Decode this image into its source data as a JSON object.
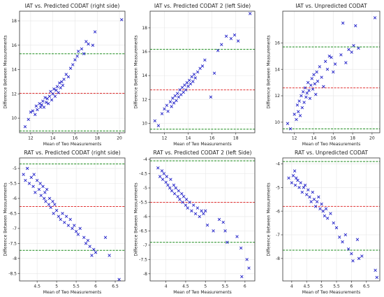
{
  "colors": {
    "points": "#2020c8",
    "mean_line": "#e03030",
    "loa_line": "#1a8a1a",
    "frame": "#333333",
    "grid": "#e6e6e6"
  },
  "chart_data": [
    {
      "type": "scatter",
      "title": "IAT vs. Predicted CODAT (right side)",
      "xlabel": "Mean of Two Measurements",
      "ylabel": "Difference Between Measurements",
      "xlim": [
        11.0,
        20.5
      ],
      "ylim": [
        8.8,
        18.8
      ],
      "xticks": [
        12,
        14,
        16,
        18,
        20
      ],
      "yticks": [
        10,
        12,
        14,
        16,
        18
      ],
      "mean": 12.05,
      "loa_upper": 15.3,
      "loa_lower": 8.95,
      "grid": true,
      "marker": "x",
      "points": [
        [
          11.5,
          9.3
        ],
        [
          11.8,
          9.9
        ],
        [
          12.0,
          10.5
        ],
        [
          12.2,
          10.6
        ],
        [
          12.4,
          10.3
        ],
        [
          12.5,
          11.0
        ],
        [
          12.6,
          10.7
        ],
        [
          12.8,
          11.2
        ],
        [
          12.9,
          10.9
        ],
        [
          13.0,
          11.1
        ],
        [
          13.1,
          11.4
        ],
        [
          13.2,
          10.9
        ],
        [
          13.3,
          11.7
        ],
        [
          13.4,
          11.3
        ],
        [
          13.5,
          11.6
        ],
        [
          13.6,
          11.2
        ],
        [
          13.7,
          11.8
        ],
        [
          13.8,
          12.2
        ],
        [
          13.9,
          11.5
        ],
        [
          14.0,
          12.0
        ],
        [
          14.1,
          12.4
        ],
        [
          14.2,
          11.8
        ],
        [
          14.3,
          12.3
        ],
        [
          14.4,
          12.6
        ],
        [
          14.5,
          12.1
        ],
        [
          14.6,
          12.9
        ],
        [
          14.7,
          12.5
        ],
        [
          14.8,
          13.0
        ],
        [
          14.9,
          12.7
        ],
        [
          15.0,
          13.2
        ],
        [
          15.2,
          13.6
        ],
        [
          15.4,
          13.4
        ],
        [
          15.6,
          14.1
        ],
        [
          15.8,
          14.4
        ],
        [
          16.0,
          14.8
        ],
        [
          16.2,
          15.1
        ],
        [
          16.3,
          15.5
        ],
        [
          16.6,
          15.7
        ],
        [
          16.8,
          15.3
        ],
        [
          17.0,
          16.3
        ],
        [
          17.2,
          16.1
        ],
        [
          17.6,
          16.0
        ],
        [
          17.8,
          17.1
        ],
        [
          20.2,
          18.1
        ]
      ]
    },
    {
      "type": "scatter",
      "title": "IAT vs. Predicted CODAT 2 (left Side)",
      "xlabel": "Mean of Two Measurements",
      "ylabel": "Difference Between Measurements",
      "xlim": [
        10.8,
        19.6
      ],
      "ylim": [
        9.2,
        19.4
      ],
      "xticks": [
        12,
        14,
        16,
        18
      ],
      "yticks": [
        10,
        12,
        14,
        16,
        18
      ],
      "mean": 12.8,
      "loa_upper": 16.2,
      "loa_lower": 9.5,
      "grid": true,
      "marker": "x",
      "points": [
        [
          11.2,
          10.2
        ],
        [
          11.5,
          9.8
        ],
        [
          11.8,
          10.8
        ],
        [
          12.0,
          11.2
        ],
        [
          12.2,
          11.5
        ],
        [
          12.3,
          11.0
        ],
        [
          12.5,
          11.8
        ],
        [
          12.6,
          11.4
        ],
        [
          12.7,
          12.1
        ],
        [
          12.8,
          11.7
        ],
        [
          12.9,
          12.3
        ],
        [
          13.0,
          11.9
        ],
        [
          13.1,
          12.5
        ],
        [
          13.2,
          12.2
        ],
        [
          13.3,
          12.8
        ],
        [
          13.4,
          12.4
        ],
        [
          13.5,
          13.0
        ],
        [
          13.6,
          12.6
        ],
        [
          13.7,
          13.2
        ],
        [
          13.8,
          12.8
        ],
        [
          13.9,
          13.4
        ],
        [
          14.0,
          13.1
        ],
        [
          14.1,
          13.6
        ],
        [
          14.2,
          13.3
        ],
        [
          14.3,
          13.9
        ],
        [
          14.4,
          13.5
        ],
        [
          14.5,
          14.1
        ],
        [
          14.6,
          13.8
        ],
        [
          14.8,
          14.3
        ],
        [
          15.0,
          14.6
        ],
        [
          15.2,
          14.8
        ],
        [
          15.4,
          15.3
        ],
        [
          15.9,
          12.2
        ],
        [
          16.2,
          14.2
        ],
        [
          16.5,
          16.1
        ],
        [
          16.8,
          16.6
        ],
        [
          17.2,
          17.3
        ],
        [
          17.6,
          17.1
        ],
        [
          17.9,
          17.4
        ],
        [
          18.2,
          16.9
        ],
        [
          19.2,
          19.2
        ]
      ]
    },
    {
      "type": "scatter",
      "title": "IAT vs. Unpredicted CODAT",
      "xlabel": "Mean of Two Measurements",
      "ylabel": "Difference Between Measurements",
      "xlim": [
        10.8,
        20.8
      ],
      "ylim": [
        9.2,
        18.4
      ],
      "xticks": [
        12,
        14,
        16,
        18,
        20
      ],
      "yticks": [
        10,
        12,
        14,
        16
      ],
      "mean": 12.6,
      "loa_upper": 15.7,
      "loa_lower": 9.5,
      "grid": true,
      "marker": "x",
      "points": [
        [
          11.3,
          9.9
        ],
        [
          11.6,
          9.5
        ],
        [
          12.0,
          10.6
        ],
        [
          12.2,
          10.2
        ],
        [
          12.3,
          11.3
        ],
        [
          12.4,
          10.8
        ],
        [
          12.5,
          11.6
        ],
        [
          12.6,
          10.5
        ],
        [
          12.7,
          12.0
        ],
        [
          12.8,
          11.1
        ],
        [
          12.9,
          12.3
        ],
        [
          13.0,
          11.5
        ],
        [
          13.1,
          12.6
        ],
        [
          13.2,
          11.9
        ],
        [
          13.3,
          12.2
        ],
        [
          13.4,
          13.0
        ],
        [
          13.5,
          12.4
        ],
        [
          13.6,
          11.8
        ],
        [
          13.7,
          12.8
        ],
        [
          13.8,
          13.3
        ],
        [
          13.9,
          12.5
        ],
        [
          14.0,
          13.6
        ],
        [
          14.1,
          12.9
        ],
        [
          14.2,
          12.1
        ],
        [
          14.3,
          13.8
        ],
        [
          14.4,
          13.1
        ],
        [
          14.6,
          14.2
        ],
        [
          14.8,
          13.4
        ],
        [
          15.0,
          12.7
        ],
        [
          15.2,
          14.6
        ],
        [
          15.4,
          14.0
        ],
        [
          15.6,
          15.0
        ],
        [
          15.8,
          14.9
        ],
        [
          16.0,
          13.8
        ],
        [
          16.2,
          14.4
        ],
        [
          16.8,
          15.1
        ],
        [
          17.0,
          17.5
        ],
        [
          17.3,
          14.5
        ],
        [
          17.6,
          15.5
        ],
        [
          17.9,
          15.3
        ],
        [
          18.1,
          15.8
        ],
        [
          18.3,
          17.3
        ],
        [
          18.6,
          15.6
        ],
        [
          20.3,
          17.9
        ]
      ]
    },
    {
      "type": "scatter",
      "title": "RAT vs. Predicted CODAT (right side)",
      "xlabel": "Mean of Two Measurements",
      "ylabel": "Difference Between Measurements",
      "xlim": [
        4.05,
        6.75
      ],
      "ylim": [
        -8.75,
        -4.65
      ],
      "xticks": [
        4.5,
        5.0,
        5.5,
        6.0,
        6.5
      ],
      "yticks": [
        -5.0,
        -5.5,
        -6.0,
        -6.5,
        -7.0,
        -7.5,
        -8.0,
        -8.5
      ],
      "mean": -6.27,
      "loa_upper": -4.85,
      "loa_lower": -7.73,
      "grid": true,
      "marker": "x",
      "points": [
        [
          4.15,
          -5.2
        ],
        [
          4.2,
          -5.4
        ],
        [
          4.25,
          -5.0
        ],
        [
          4.3,
          -5.5
        ],
        [
          4.35,
          -5.3
        ],
        [
          4.4,
          -5.6
        ],
        [
          4.42,
          -5.2
        ],
        [
          4.45,
          -5.8
        ],
        [
          4.5,
          -5.4
        ],
        [
          4.55,
          -5.7
        ],
        [
          4.58,
          -5.5
        ],
        [
          4.6,
          -5.9
        ],
        [
          4.65,
          -5.6
        ],
        [
          4.68,
          -6.0
        ],
        [
          4.7,
          -5.8
        ],
        [
          4.72,
          -6.1
        ],
        [
          4.75,
          -5.7
        ],
        [
          4.8,
          -6.2
        ],
        [
          4.82,
          -6.0
        ],
        [
          4.85,
          -6.3
        ],
        [
          4.9,
          -6.1
        ],
        [
          4.92,
          -6.5
        ],
        [
          4.95,
          -6.2
        ],
        [
          5.0,
          -6.4
        ],
        [
          5.05,
          -6.6
        ],
        [
          5.1,
          -6.7
        ],
        [
          5.15,
          -6.5
        ],
        [
          5.2,
          -6.8
        ],
        [
          5.25,
          -6.6
        ],
        [
          5.3,
          -6.9
        ],
        [
          5.35,
          -6.7
        ],
        [
          5.4,
          -7.0
        ],
        [
          5.45,
          -6.9
        ],
        [
          5.5,
          -7.1
        ],
        [
          5.55,
          -7.2
        ],
        [
          5.6,
          -7.0
        ],
        [
          5.7,
          -7.3
        ],
        [
          5.75,
          -7.5
        ],
        [
          5.8,
          -7.4
        ],
        [
          5.85,
          -7.6
        ],
        [
          5.9,
          -7.9
        ],
        [
          5.95,
          -7.7
        ],
        [
          6.0,
          -7.8
        ],
        [
          6.25,
          -7.3
        ],
        [
          6.35,
          -7.9
        ],
        [
          6.6,
          -8.7
        ]
      ]
    },
    {
      "type": "scatter",
      "title": "RAT vs. Predicted CODAT 2 (left Side)",
      "xlabel": "Mean of Two Measurements",
      "ylabel": "Difference Between Measurements",
      "xlim": [
        3.6,
        6.25
      ],
      "ylim": [
        -8.25,
        -3.95
      ],
      "xticks": [
        4.0,
        4.5,
        5.0,
        5.5,
        6.0
      ],
      "yticks": [
        -4.0,
        -4.5,
        -5.0,
        -5.5,
        -6.0,
        -6.5,
        -7.0,
        -7.5,
        -8.0
      ],
      "mean": -5.5,
      "loa_upper": -4.05,
      "loa_lower": -6.9,
      "grid": true,
      "marker": "x",
      "points": [
        [
          3.8,
          -4.3
        ],
        [
          3.85,
          -4.6
        ],
        [
          3.9,
          -4.4
        ],
        [
          3.92,
          -4.7
        ],
        [
          3.95,
          -4.5
        ],
        [
          4.0,
          -4.8
        ],
        [
          4.02,
          -4.6
        ],
        [
          4.05,
          -4.9
        ],
        [
          4.1,
          -5.0
        ],
        [
          4.12,
          -4.7
        ],
        [
          4.15,
          -5.1
        ],
        [
          4.2,
          -4.9
        ],
        [
          4.22,
          -5.2
        ],
        [
          4.25,
          -5.0
        ],
        [
          4.3,
          -5.3
        ],
        [
          4.32,
          -5.1
        ],
        [
          4.35,
          -5.4
        ],
        [
          4.4,
          -5.2
        ],
        [
          4.42,
          -5.5
        ],
        [
          4.45,
          -5.3
        ],
        [
          4.5,
          -5.6
        ],
        [
          4.52,
          -5.4
        ],
        [
          4.55,
          -5.7
        ],
        [
          4.6,
          -5.5
        ],
        [
          4.65,
          -5.8
        ],
        [
          4.7,
          -5.6
        ],
        [
          4.75,
          -5.9
        ],
        [
          4.8,
          -5.7
        ],
        [
          4.85,
          -6.0
        ],
        [
          4.9,
          -5.8
        ],
        [
          4.95,
          -5.9
        ],
        [
          5.0,
          -5.8
        ],
        [
          5.05,
          -6.3
        ],
        [
          5.2,
          -6.5
        ],
        [
          5.35,
          -6.1
        ],
        [
          5.45,
          -6.2
        ],
        [
          5.5,
          -6.5
        ],
        [
          5.55,
          -6.9
        ],
        [
          5.8,
          -6.7
        ],
        [
          5.9,
          -7.1
        ],
        [
          6.05,
          -7.5
        ],
        [
          6.1,
          -7.8
        ],
        [
          5.92,
          -8.1
        ]
      ]
    },
    {
      "type": "scatter",
      "title": "RAT vs. Unpredicted CODAT",
      "xlabel": "Mean of Two Measurements",
      "ylabel": "Difference Between Measurements",
      "xlim": [
        3.7,
        6.95
      ],
      "ylim": [
        -8.95,
        -3.75
      ],
      "xticks": [
        4.0,
        4.5,
        5.0,
        5.5,
        6.0,
        6.5
      ],
      "yticks": [
        -4,
        -5,
        -6,
        -7,
        -8
      ],
      "mean": -5.8,
      "loa_upper": -3.9,
      "loa_lower": -7.65,
      "grid": true,
      "marker": "x",
      "points": [
        [
          3.9,
          -4.6
        ],
        [
          4.0,
          -4.8
        ],
        [
          4.05,
          -4.5
        ],
        [
          4.1,
          -4.3
        ],
        [
          4.12,
          -4.9
        ],
        [
          4.15,
          -4.6
        ],
        [
          4.2,
          -4.7
        ],
        [
          4.25,
          -5.0
        ],
        [
          4.3,
          -4.8
        ],
        [
          4.35,
          -5.2
        ],
        [
          4.4,
          -5.0
        ],
        [
          4.45,
          -4.9
        ],
        [
          4.5,
          -5.3
        ],
        [
          4.55,
          -5.1
        ],
        [
          4.6,
          -5.4
        ],
        [
          4.65,
          -5.6
        ],
        [
          4.7,
          -5.2
        ],
        [
          4.75,
          -5.5
        ],
        [
          4.8,
          -5.8
        ],
        [
          4.85,
          -5.6
        ],
        [
          4.9,
          -5.4
        ],
        [
          4.95,
          -5.9
        ],
        [
          5.0,
          -5.7
        ],
        [
          5.05,
          -6.0
        ],
        [
          5.1,
          -6.2
        ],
        [
          5.15,
          -5.9
        ],
        [
          5.2,
          -6.3
        ],
        [
          5.3,
          -6.1
        ],
        [
          5.4,
          -6.5
        ],
        [
          5.5,
          -6.7
        ],
        [
          5.6,
          -7.1
        ],
        [
          5.7,
          -7.3
        ],
        [
          5.8,
          -7.0
        ],
        [
          5.9,
          -7.6
        ],
        [
          6.0,
          -7.8
        ],
        [
          6.05,
          -8.1
        ],
        [
          6.2,
          -7.2
        ],
        [
          6.25,
          -8.0
        ],
        [
          6.35,
          -7.9
        ],
        [
          6.8,
          -8.5
        ],
        [
          6.85,
          -8.8
        ]
      ]
    }
  ]
}
